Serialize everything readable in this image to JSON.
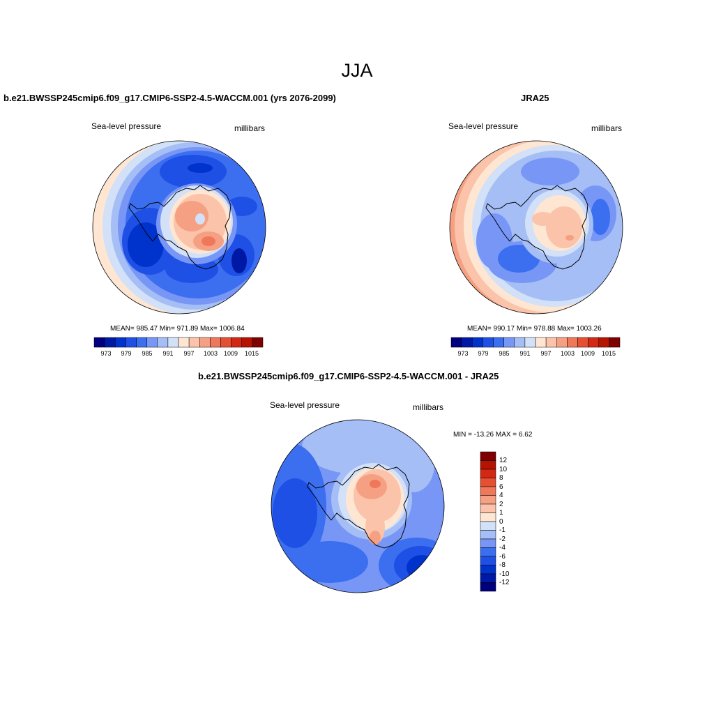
{
  "page": {
    "title": "JJA"
  },
  "colors": {
    "fill_scale": [
      "#00007f",
      "#0019a5",
      "#0032cc",
      "#1e50e6",
      "#3c6ef0",
      "#7896f5",
      "#a5bef5",
      "#d2e1f7",
      "#ffe6d2",
      "#fac3aa",
      "#f5a082",
      "#f0785a",
      "#e65032",
      "#d22814",
      "#b41400",
      "#7f0000"
    ],
    "coastline": "#000000",
    "border": "#000000"
  },
  "panels": [
    {
      "id": "model",
      "title": "b.e21.BWSSP245cmip6.f09_g17.CMIP6-SSP2-4.5-WACCM.001 (yrs 2076-2099)",
      "left_label": "Sea-level pressure",
      "right_label": "millibars",
      "stats": "MEAN= 985.47  Min= 971.89  Max= 1006.84",
      "colorbar_labels": [
        "973",
        "979",
        "985",
        "991",
        "997",
        "1003",
        "1009",
        "1015"
      ]
    },
    {
      "id": "obs",
      "title": "JRA25",
      "left_label": "Sea-level pressure",
      "right_label": "millibars",
      "stats": "MEAN= 990.17  Min= 978.88  Max= 1003.26",
      "colorbar_labels": [
        "973",
        "979",
        "985",
        "991",
        "997",
        "1003",
        "1009",
        "1015"
      ]
    },
    {
      "id": "diff",
      "title": "b.e21.BWSSP245cmip6.f09_g17.CMIP6-SSP2-4.5-WACCM.001 - JRA25",
      "left_label": "Sea-level pressure",
      "right_label": "millibars",
      "minmax": "MIN = -13.26 MAX =   6.62",
      "colorbar_labels": [
        "12",
        "10",
        "8",
        "6",
        "4",
        "2",
        "1",
        "0",
        "-1",
        "-2",
        "-4",
        "-6",
        "-8",
        "-10",
        "-12"
      ]
    }
  ]
}
